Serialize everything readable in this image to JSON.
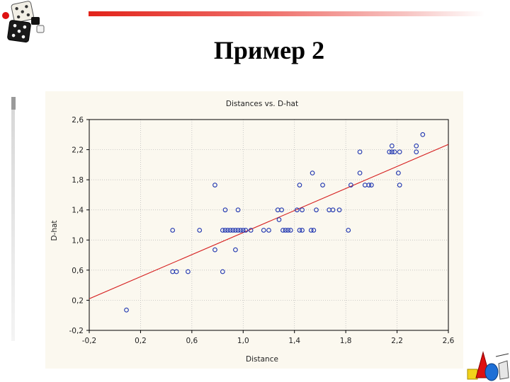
{
  "slide": {
    "title": "Пример 2"
  },
  "icons": {
    "top_left": "dice-icon",
    "bottom_right": "geometric-shapes-icon"
  },
  "colors": {
    "accent_rule": "#e2231a",
    "points": "#1f35b0",
    "fit_line": "#d62020",
    "panel_bg": "#fbf8ef"
  },
  "chart_data": {
    "type": "scatter",
    "title": "Distances vs. D-hat",
    "xlabel": "Distance",
    "ylabel": "D-hat",
    "xlim": [
      -0.2,
      2.6
    ],
    "ylim": [
      -0.2,
      2.6
    ],
    "xticks": [
      "-0,2",
      "0,2",
      "0,6",
      "1,0",
      "1,4",
      "1,8",
      "2,2",
      "2,6"
    ],
    "yticks": [
      "2,6",
      "2,2",
      "1,8",
      "1,4",
      "1,0",
      "0,6",
      "0,2",
      "-0,2"
    ],
    "grid": true,
    "legend": "none",
    "fit_line": {
      "x": [
        -0.2,
        2.6
      ],
      "y": [
        0.22,
        2.27
      ]
    },
    "points": [
      [
        0.09,
        0.07
      ],
      [
        0.45,
        0.58
      ],
      [
        0.48,
        0.58
      ],
      [
        0.57,
        0.58
      ],
      [
        0.84,
        0.58
      ],
      [
        0.45,
        1.13
      ],
      [
        0.66,
        1.13
      ],
      [
        0.78,
        0.87
      ],
      [
        0.94,
        0.87
      ],
      [
        0.78,
        1.73
      ],
      [
        0.84,
        1.13
      ],
      [
        0.86,
        1.13
      ],
      [
        0.88,
        1.13
      ],
      [
        0.9,
        1.13
      ],
      [
        0.92,
        1.13
      ],
      [
        0.94,
        1.13
      ],
      [
        0.96,
        1.13
      ],
      [
        0.98,
        1.13
      ],
      [
        1.0,
        1.13
      ],
      [
        1.02,
        1.13
      ],
      [
        1.06,
        1.13
      ],
      [
        1.16,
        1.13
      ],
      [
        1.2,
        1.13
      ],
      [
        1.31,
        1.13
      ],
      [
        1.33,
        1.13
      ],
      [
        1.35,
        1.13
      ],
      [
        1.37,
        1.13
      ],
      [
        1.44,
        1.13
      ],
      [
        1.46,
        1.13
      ],
      [
        1.53,
        1.13
      ],
      [
        1.55,
        1.13
      ],
      [
        1.82,
        1.13
      ],
      [
        0.86,
        1.4
      ],
      [
        0.96,
        1.4
      ],
      [
        1.27,
        1.4
      ],
      [
        1.3,
        1.4
      ],
      [
        1.42,
        1.4
      ],
      [
        1.46,
        1.4
      ],
      [
        1.57,
        1.4
      ],
      [
        1.67,
        1.4
      ],
      [
        1.7,
        1.4
      ],
      [
        1.75,
        1.4
      ],
      [
        1.28,
        1.27
      ],
      [
        1.44,
        1.73
      ],
      [
        1.62,
        1.73
      ],
      [
        1.84,
        1.73
      ],
      [
        1.95,
        1.73
      ],
      [
        1.98,
        1.73
      ],
      [
        2.0,
        1.73
      ],
      [
        2.22,
        1.73
      ],
      [
        1.54,
        1.89
      ],
      [
        1.91,
        1.89
      ],
      [
        2.21,
        1.89
      ],
      [
        1.91,
        2.17
      ],
      [
        2.14,
        2.17
      ],
      [
        2.16,
        2.17
      ],
      [
        2.18,
        2.17
      ],
      [
        2.22,
        2.17
      ],
      [
        2.35,
        2.17
      ],
      [
        2.16,
        2.25
      ],
      [
        2.35,
        2.25
      ],
      [
        2.4,
        2.4
      ]
    ]
  }
}
